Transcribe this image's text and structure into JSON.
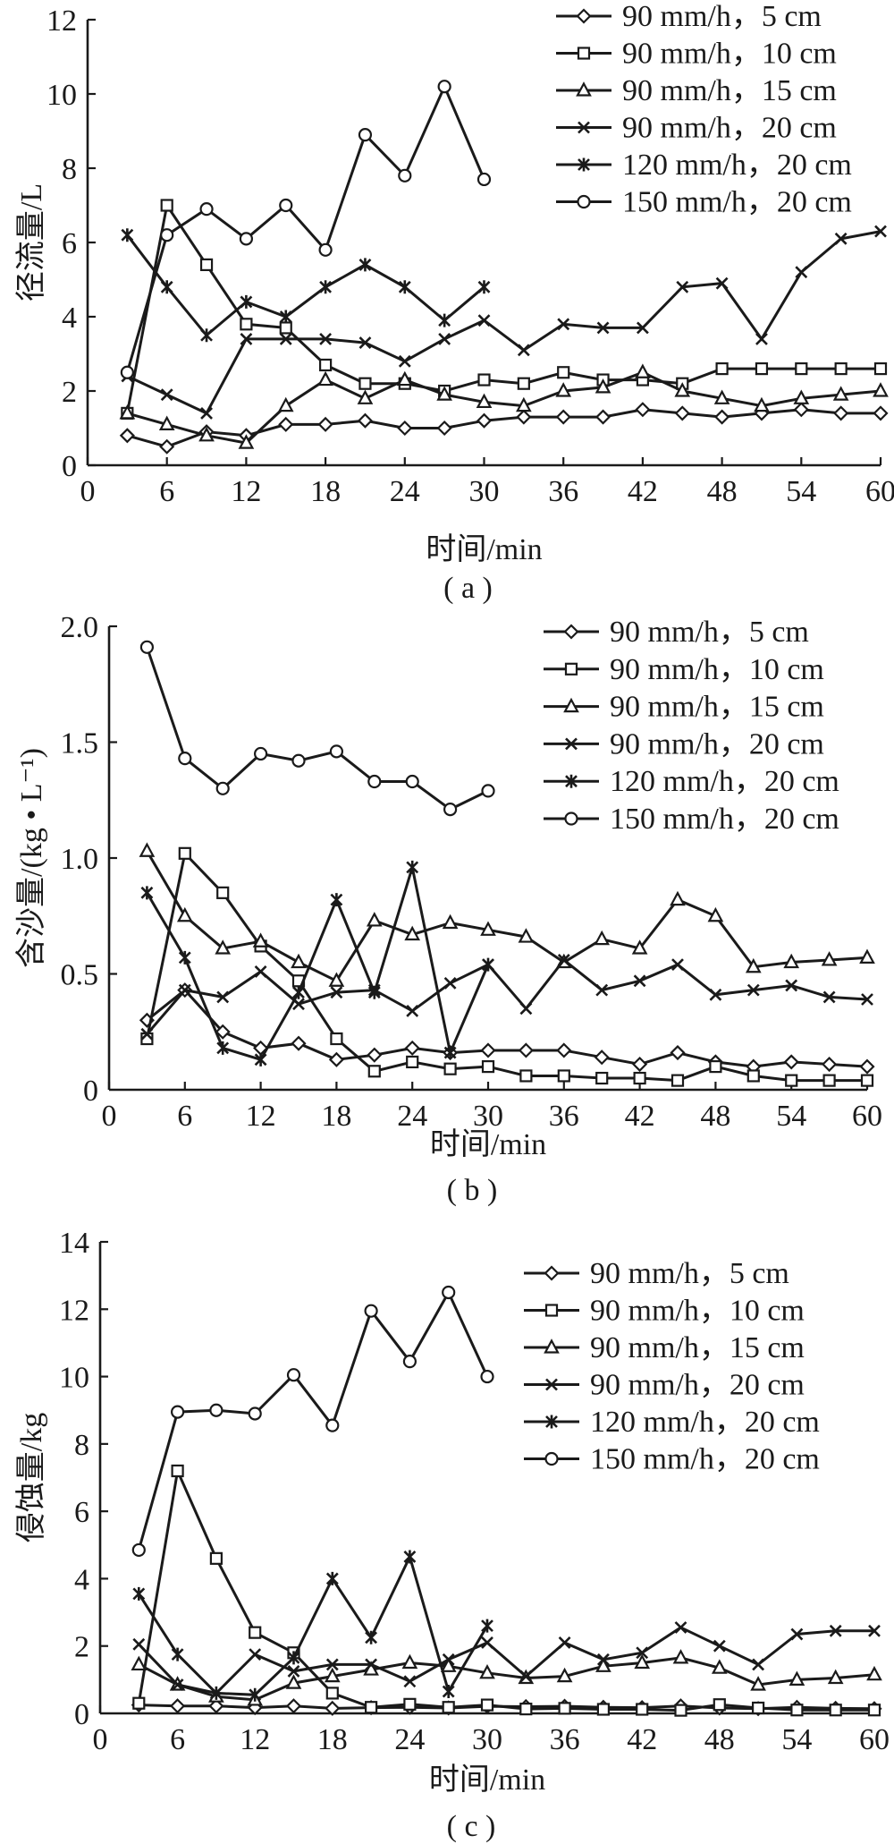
{
  "chart_data": [
    {
      "type": "line",
      "panel_label": "( a )",
      "xlabel": "时间/min",
      "ylabel": "径流量/L",
      "xlim": [
        0,
        60
      ],
      "ylim": [
        0,
        12
      ],
      "xticks": [
        0,
        6,
        12,
        18,
        24,
        30,
        36,
        42,
        48,
        54,
        60
      ],
      "yticks": [
        0,
        2,
        4,
        6,
        8,
        10,
        12
      ],
      "ytick_labels": [
        "0",
        "2",
        "4",
        "6",
        "8",
        "10",
        "12"
      ],
      "legend": "top-right",
      "series": [
        {
          "name": "90 mm/h，5 cm",
          "marker": "diamond",
          "x": [
            3,
            6,
            9,
            12,
            15,
            18,
            21,
            24,
            27,
            30,
            33,
            36,
            39,
            42,
            45,
            48,
            51,
            54,
            57,
            60
          ],
          "values": [
            0.8,
            0.5,
            0.9,
            0.8,
            1.1,
            1.1,
            1.2,
            1.0,
            1.0,
            1.2,
            1.3,
            1.3,
            1.3,
            1.5,
            1.4,
            1.3,
            1.4,
            1.5,
            1.4,
            1.4
          ]
        },
        {
          "name": "90 mm/h，10 cm",
          "marker": "square",
          "x": [
            3,
            6,
            9,
            12,
            15,
            18,
            21,
            24,
            27,
            30,
            33,
            36,
            39,
            42,
            45,
            48,
            51,
            54,
            57,
            60
          ],
          "values": [
            1.4,
            7.0,
            5.4,
            3.8,
            3.7,
            2.7,
            2.2,
            2.2,
            2.0,
            2.3,
            2.2,
            2.5,
            2.3,
            2.3,
            2.2,
            2.6,
            2.6,
            2.6,
            2.6,
            2.6
          ]
        },
        {
          "name": "90 mm/h，15 cm",
          "marker": "triangle",
          "x": [
            3,
            6,
            9,
            12,
            15,
            18,
            21,
            24,
            27,
            30,
            33,
            36,
            39,
            42,
            45,
            48,
            51,
            54,
            57,
            60
          ],
          "values": [
            1.4,
            1.1,
            0.8,
            0.6,
            1.6,
            2.3,
            1.8,
            2.3,
            1.9,
            1.7,
            1.6,
            2.0,
            2.1,
            2.5,
            2.0,
            1.8,
            1.6,
            1.8,
            1.9,
            2.0
          ]
        },
        {
          "name": "90 mm/h，20 cm",
          "marker": "x",
          "x": [
            3,
            6,
            9,
            12,
            15,
            18,
            21,
            24,
            27,
            30,
            33,
            36,
            39,
            42,
            45,
            48,
            51,
            54,
            57,
            60
          ],
          "values": [
            2.4,
            1.9,
            1.4,
            3.4,
            3.4,
            3.4,
            3.3,
            2.8,
            3.4,
            3.9,
            3.1,
            3.8,
            3.7,
            3.7,
            4.8,
            4.9,
            3.4,
            5.2,
            6.1,
            6.3
          ]
        },
        {
          "name": "120 mm/h，20 cm",
          "marker": "asterisk",
          "x": [
            3,
            6,
            9,
            12,
            15,
            18,
            21,
            24,
            27,
            30
          ],
          "values": [
            6.2,
            4.8,
            3.5,
            4.4,
            4.0,
            4.8,
            5.4,
            4.8,
            3.9,
            4.8
          ]
        },
        {
          "name": "150 mm/h，20 cm",
          "marker": "circle",
          "x": [
            3,
            6,
            9,
            12,
            15,
            18,
            21,
            24,
            27,
            30
          ],
          "values": [
            2.5,
            6.2,
            6.9,
            6.1,
            7.0,
            5.8,
            8.9,
            7.8,
            10.2,
            7.7
          ]
        }
      ]
    },
    {
      "type": "line",
      "panel_label": "( b )",
      "xlabel": "时间/min",
      "ylabel": "含沙量/(kg • L⁻¹)",
      "xlim": [
        0,
        60
      ],
      "ylim": [
        0,
        2.0
      ],
      "xticks": [
        0,
        6,
        12,
        18,
        24,
        30,
        36,
        42,
        48,
        54,
        60
      ],
      "yticks": [
        0.5,
        1.0,
        1.5,
        2.0
      ],
      "ytick_labels": [
        "0.5",
        "1.0",
        "1.5",
        "2.0"
      ],
      "legend": "top-right",
      "series": [
        {
          "name": "90 mm/h，5 cm",
          "marker": "diamond",
          "x": [
            3,
            6,
            9,
            12,
            15,
            18,
            21,
            24,
            27,
            30,
            33,
            36,
            39,
            42,
            45,
            48,
            51,
            54,
            57,
            60
          ],
          "values": [
            0.3,
            0.43,
            0.25,
            0.18,
            0.2,
            0.13,
            0.15,
            0.18,
            0.16,
            0.17,
            0.17,
            0.17,
            0.14,
            0.11,
            0.16,
            0.12,
            0.1,
            0.12,
            0.11,
            0.1
          ]
        },
        {
          "name": "90 mm/h，10 cm",
          "marker": "square",
          "x": [
            3,
            6,
            9,
            12,
            15,
            18,
            21,
            24,
            27,
            30,
            33,
            36,
            39,
            42,
            45,
            48,
            51,
            54,
            57,
            60
          ],
          "values": [
            0.22,
            1.02,
            0.85,
            0.62,
            0.47,
            0.22,
            0.08,
            0.12,
            0.09,
            0.1,
            0.06,
            0.06,
            0.05,
            0.05,
            0.04,
            0.1,
            0.06,
            0.04,
            0.04,
            0.04
          ]
        },
        {
          "name": "90 mm/h，15 cm",
          "marker": "triangle",
          "x": [
            3,
            6,
            9,
            12,
            15,
            18,
            21,
            24,
            27,
            30,
            33,
            36,
            39,
            42,
            45,
            48,
            51,
            54,
            57,
            60
          ],
          "values": [
            1.03,
            0.75,
            0.61,
            0.64,
            0.55,
            0.47,
            0.73,
            0.67,
            0.72,
            0.69,
            0.66,
            0.55,
            0.65,
            0.61,
            0.82,
            0.75,
            0.53,
            0.55,
            0.56,
            0.57
          ]
        },
        {
          "name": "90 mm/h，20 cm",
          "marker": "x",
          "x": [
            3,
            6,
            9,
            12,
            15,
            18,
            21,
            24,
            27,
            30,
            33,
            36,
            39,
            42,
            45,
            48,
            51,
            54,
            57,
            60
          ],
          "values": [
            0.24,
            0.43,
            0.4,
            0.51,
            0.37,
            0.42,
            0.43,
            0.34,
            0.46,
            0.54,
            0.35,
            0.56,
            0.43,
            0.47,
            0.54,
            0.41,
            0.43,
            0.45,
            0.4,
            0.39
          ]
        },
        {
          "name": "120 mm/h，20 cm",
          "marker": "asterisk",
          "x": [
            3,
            6,
            9,
            12,
            15,
            18,
            21,
            24,
            27,
            30
          ],
          "values": [
            0.85,
            0.57,
            0.18,
            0.13,
            0.42,
            0.82,
            0.42,
            0.96,
            0.16,
            0.54
          ]
        },
        {
          "name": "150 mm/h，20 cm",
          "marker": "circle",
          "x": [
            3,
            6,
            9,
            12,
            15,
            18,
            21,
            24,
            27,
            30
          ],
          "values": [
            1.91,
            1.43,
            1.3,
            1.45,
            1.42,
            1.46,
            1.33,
            1.33,
            1.21,
            1.29
          ]
        }
      ]
    },
    {
      "type": "line",
      "panel_label": "( c )",
      "xlabel": "时间/min",
      "ylabel": "侵蚀量/kg",
      "xlim": [
        0,
        60
      ],
      "ylim": [
        0,
        14
      ],
      "xticks": [
        0,
        6,
        12,
        18,
        24,
        30,
        36,
        42,
        48,
        54,
        60
      ],
      "yticks": [
        2,
        4,
        6,
        8,
        10,
        12,
        14
      ],
      "ytick_labels": [
        "2",
        "4",
        "6",
        "8",
        "10",
        "12",
        "14"
      ],
      "legend": "top-right",
      "series": [
        {
          "name": "90 mm/h，5 cm",
          "marker": "diamond",
          "x": [
            3,
            6,
            9,
            12,
            15,
            18,
            21,
            24,
            27,
            30,
            33,
            36,
            39,
            42,
            45,
            48,
            51,
            54,
            57,
            60
          ],
          "values": [
            0.25,
            0.22,
            0.22,
            0.17,
            0.22,
            0.15,
            0.17,
            0.18,
            0.16,
            0.21,
            0.2,
            0.21,
            0.18,
            0.17,
            0.22,
            0.16,
            0.14,
            0.18,
            0.15,
            0.14
          ]
        },
        {
          "name": "90 mm/h，10 cm",
          "marker": "square",
          "x": [
            3,
            6,
            9,
            12,
            15,
            18,
            21,
            24,
            27,
            30,
            33,
            36,
            39,
            42,
            45,
            48,
            51,
            54,
            57,
            60
          ],
          "values": [
            0.3,
            7.2,
            4.6,
            2.4,
            1.8,
            0.6,
            0.18,
            0.27,
            0.18,
            0.25,
            0.13,
            0.15,
            0.12,
            0.12,
            0.09,
            0.26,
            0.16,
            0.1,
            0.1,
            0.1
          ]
        },
        {
          "name": "90 mm/h，15 cm",
          "marker": "triangle",
          "x": [
            3,
            6,
            9,
            12,
            15,
            18,
            21,
            24,
            27,
            30,
            33,
            36,
            39,
            42,
            45,
            48,
            51,
            54,
            57,
            60
          ],
          "values": [
            1.45,
            0.85,
            0.5,
            0.4,
            0.9,
            1.1,
            1.3,
            1.5,
            1.4,
            1.2,
            1.05,
            1.1,
            1.4,
            1.5,
            1.65,
            1.35,
            0.85,
            1.0,
            1.05,
            1.15
          ]
        },
        {
          "name": "90 mm/h，20 cm",
          "marker": "x",
          "x": [
            3,
            6,
            9,
            12,
            15,
            18,
            21,
            24,
            27,
            30,
            33,
            36,
            39,
            42,
            45,
            48,
            51,
            54,
            57,
            60
          ],
          "values": [
            2.05,
            0.85,
            0.6,
            1.75,
            1.25,
            1.45,
            1.45,
            0.95,
            1.6,
            2.1,
            1.1,
            2.1,
            1.6,
            1.8,
            2.55,
            2.0,
            1.45,
            2.35,
            2.45,
            2.45
          ]
        },
        {
          "name": "120 mm/h，20 cm",
          "marker": "asterisk",
          "x": [
            3,
            6,
            9,
            12,
            15,
            18,
            21,
            24,
            27,
            30
          ],
          "values": [
            3.55,
            1.75,
            0.6,
            0.55,
            1.65,
            4.0,
            2.25,
            4.65,
            0.65,
            2.6
          ]
        },
        {
          "name": "150 mm/h，20 cm",
          "marker": "circle",
          "x": [
            3,
            6,
            9,
            12,
            15,
            18,
            21,
            24,
            27,
            30
          ],
          "values": [
            4.85,
            8.95,
            9.0,
            8.9,
            10.05,
            8.55,
            11.95,
            10.45,
            12.5,
            10.0
          ]
        }
      ]
    }
  ]
}
